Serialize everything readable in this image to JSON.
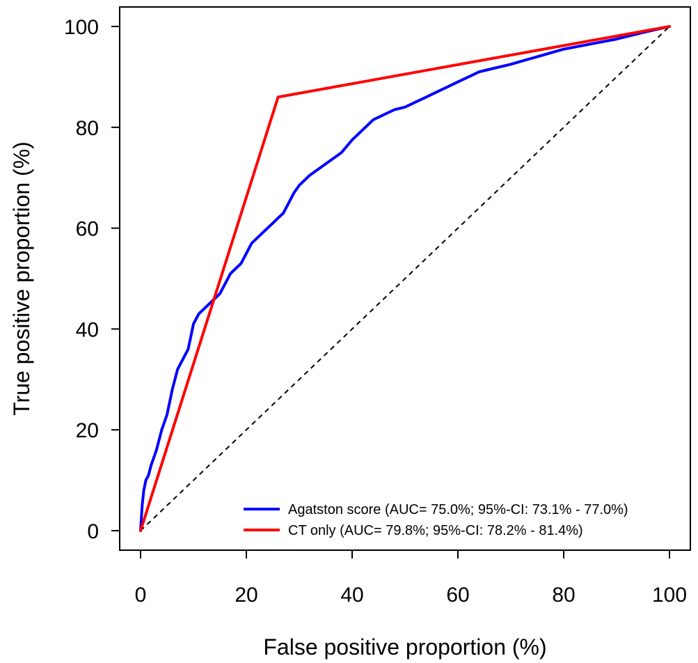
{
  "chart_data": {
    "type": "line",
    "title": "",
    "xlabel": "False positive proportion (%)",
    "ylabel": "True positive proportion (%)",
    "xlim": [
      0,
      100
    ],
    "ylim": [
      0,
      100
    ],
    "x_ticks": [
      "0",
      "20",
      "40",
      "60",
      "80",
      "100"
    ],
    "y_ticks": [
      "0",
      "20",
      "40",
      "60",
      "80",
      "100"
    ],
    "grid": false,
    "legend_position": "bottom-right",
    "reference_line": {
      "x": [
        0,
        100
      ],
      "y": [
        0,
        100
      ],
      "style": "dashed",
      "color": "#000000"
    },
    "series": [
      {
        "name": "Agatston score (AUC= 75.0%; 95%-CI: 73.1% - 77.0%)",
        "color": "#0000ff",
        "x": [
          0,
          0.3,
          0.6,
          1,
          1.5,
          2,
          3,
          4,
          5,
          6,
          7,
          8,
          9,
          10,
          11,
          12,
          13,
          14,
          15,
          16,
          17,
          18,
          19,
          20,
          21,
          22,
          23,
          24,
          25,
          26,
          27,
          28,
          29,
          30,
          32,
          34,
          36,
          38,
          40,
          42,
          44,
          46,
          48,
          50,
          52,
          54,
          56,
          58,
          60,
          62,
          64,
          66,
          70,
          75,
          80,
          85,
          90,
          95,
          100
        ],
        "y": [
          0,
          5,
          8,
          10,
          11,
          13,
          16,
          20,
          23,
          28,
          32,
          34,
          36,
          41,
          43,
          44,
          45,
          46,
          47,
          49,
          51,
          52,
          53,
          55,
          57,
          58,
          59,
          60,
          61,
          62,
          63,
          65,
          67,
          68.5,
          70.5,
          72,
          73.5,
          75,
          77.5,
          79.5,
          81.5,
          82.5,
          83.5,
          84,
          85,
          86,
          87,
          88,
          89,
          90,
          91,
          91.5,
          92.5,
          94,
          95.5,
          96.5,
          97.5,
          98.8,
          100
        ]
      },
      {
        "name": "CT only (AUC= 79.8%; 95%-CI: 78.2% - 81.4%)",
        "color": "#ff0000",
        "x": [
          0,
          26,
          100
        ],
        "y": [
          0,
          86,
          100
        ]
      }
    ]
  }
}
